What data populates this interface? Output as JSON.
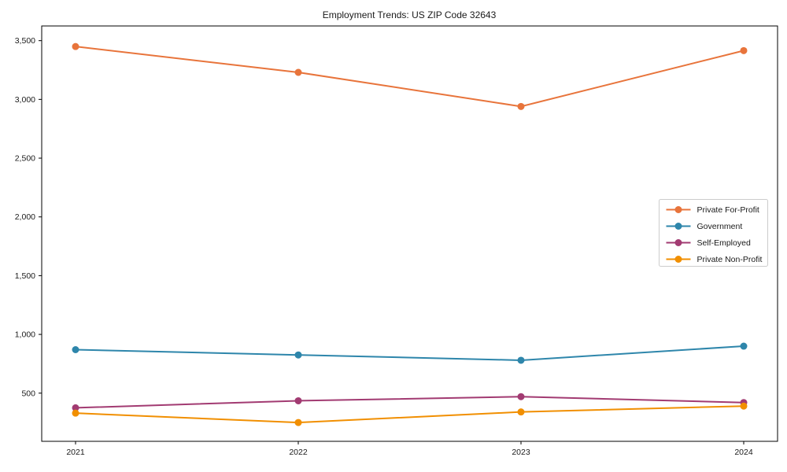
{
  "title": "Employment Trends: US ZIP Code 32643",
  "chart_data": {
    "type": "line",
    "title": "Employment Trends: US ZIP Code 32643",
    "x": [
      "2021",
      "2022",
      "2023",
      "2024"
    ],
    "series": [
      {
        "name": "Private For-Profit",
        "color": "#E8743B",
        "values": [
          3450,
          3230,
          2940,
          3415
        ]
      },
      {
        "name": "Government",
        "color": "#2E86AB",
        "values": [
          870,
          825,
          780,
          900
        ]
      },
      {
        "name": "Self-Employed",
        "color": "#A23B72",
        "values": [
          375,
          435,
          470,
          420
        ]
      },
      {
        "name": "Private Non-Profit",
        "color": "#F18F01",
        "values": [
          330,
          250,
          340,
          390
        ]
      }
    ],
    "xlabel": "",
    "ylabel": "",
    "yticks": [
      500,
      1000,
      1500,
      2000,
      2500,
      3000,
      3500
    ],
    "ylim": [
      90,
      3625
    ],
    "grid": false,
    "legend_position": "center-right",
    "marker": "circle",
    "axis_color": "#000000",
    "legend_border_color": "#cccccc",
    "background_color": "#ffffff"
  }
}
